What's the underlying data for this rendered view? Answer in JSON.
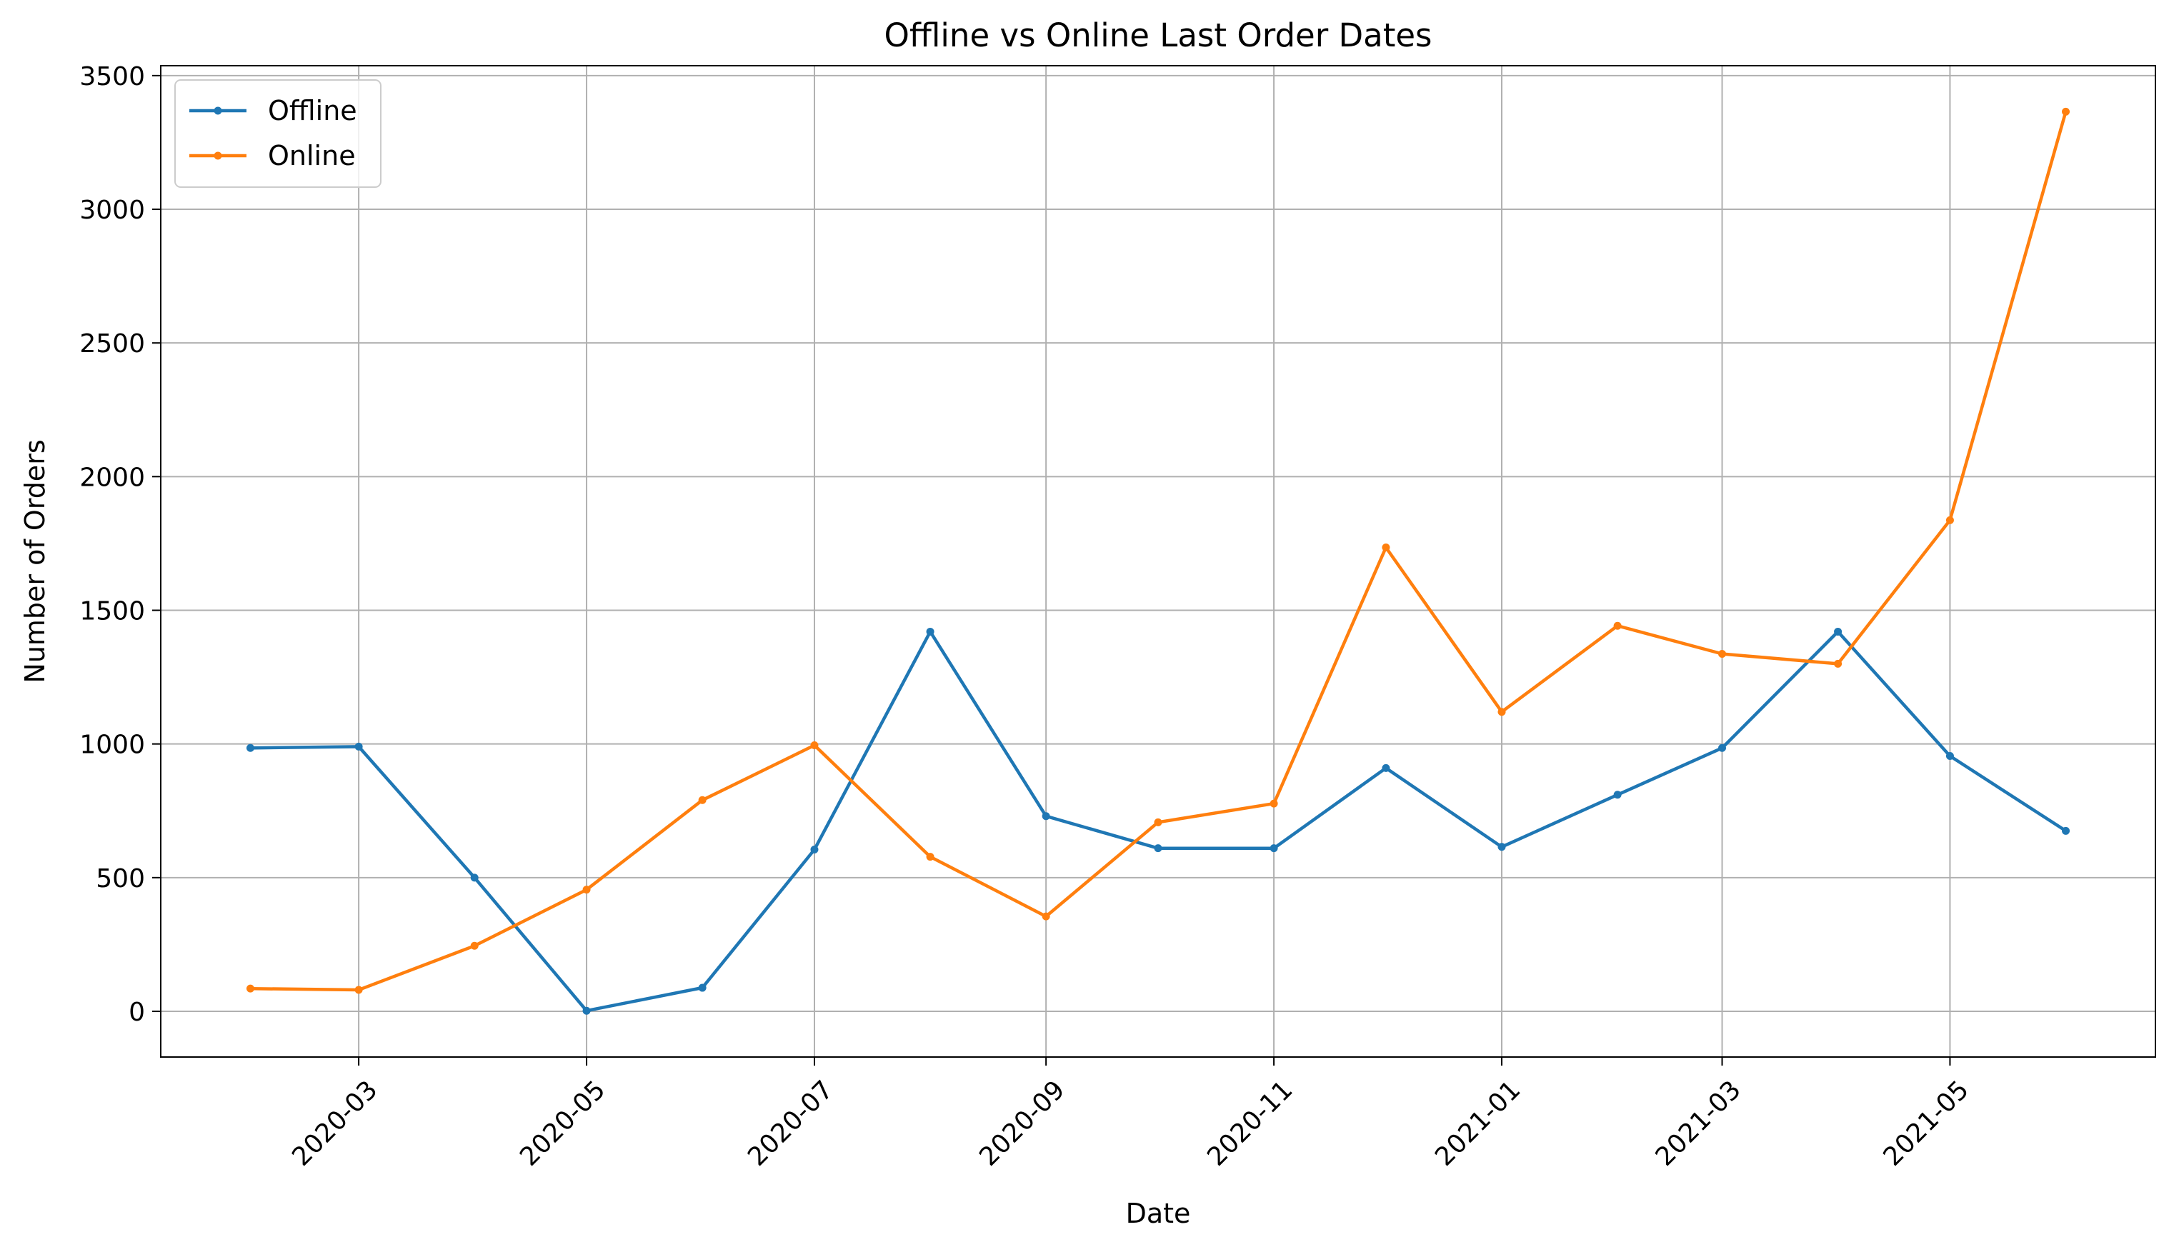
{
  "chart_data": {
    "type": "line",
    "title": "Offline vs Online Last Order Dates",
    "xlabel": "Date",
    "ylabel": "Number of Orders",
    "x": [
      "2020-02-01",
      "2020-03-01",
      "2020-04-01",
      "2020-05-01",
      "2020-06-01",
      "2020-07-01",
      "2020-08-01",
      "2020-09-01",
      "2020-10-01",
      "2020-11-01",
      "2020-12-01",
      "2021-01-01",
      "2021-02-01",
      "2021-03-01",
      "2021-04-01",
      "2021-05-01",
      "2021-06-01"
    ],
    "series": [
      {
        "name": "Offline",
        "color": "#1f77b4",
        "values": [
          985,
          990,
          500,
          2,
          88,
          605,
          1420,
          730,
          610,
          610,
          910,
          615,
          810,
          985,
          1420,
          955,
          675
        ]
      },
      {
        "name": "Online",
        "color": "#ff7f0e",
        "values": [
          85,
          80,
          245,
          455,
          790,
          995,
          578,
          355,
          707,
          777,
          1735,
          1120,
          1442,
          1337,
          1300,
          1837,
          3365
        ]
      }
    ],
    "xticks": [
      "2020-03",
      "2020-05",
      "2020-07",
      "2020-09",
      "2020-11",
      "2021-01",
      "2021-03",
      "2021-05"
    ],
    "yticks": [
      0,
      500,
      1000,
      1500,
      2000,
      2500,
      3000,
      3500
    ],
    "xlim": [
      "2020-01-08",
      "2021-06-25"
    ],
    "ylim": [
      -171,
      3537
    ],
    "grid": true,
    "legend_position": "upper-left",
    "xtick_rotation": 45
  }
}
